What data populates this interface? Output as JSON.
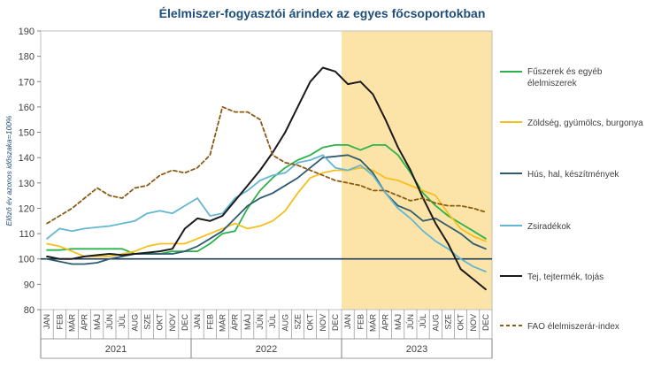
{
  "chart_data": {
    "type": "line",
    "title": "Élelmiszer-fogyasztói árindex az egyes főcsoportokban",
    "ylabel": "Előző év azonos időszaka=100%",
    "xlabel": "",
    "ylim": [
      80,
      190
    ],
    "yticks": [
      80,
      90,
      100,
      110,
      120,
      130,
      140,
      150,
      160,
      170,
      180,
      190
    ],
    "reference_line": 100,
    "highlight_start_index": 24,
    "highlight_color": "#FCE4A8",
    "grid": false,
    "legend_position": "right",
    "categories": [
      "JAN",
      "FEB",
      "MÁR",
      "ÁPR",
      "MÁJ",
      "JÚN",
      "JÚL",
      "AUG",
      "SZE",
      "OKT",
      "NOV",
      "DEC",
      "JAN",
      "FEB",
      "MÁR",
      "ÁPR",
      "MÁJ",
      "JÚN",
      "JÚL",
      "AUG",
      "SZE",
      "OKT",
      "NOV",
      "DEC",
      "JAN",
      "FEB",
      "MÁR",
      "ÁPR",
      "MÁJ",
      "JÚN",
      "JÚL",
      "AUG",
      "SZE",
      "OKT",
      "NOV",
      "DEC"
    ],
    "year_groups": [
      {
        "label": "2021",
        "start": 0,
        "end": 11
      },
      {
        "label": "2022",
        "start": 12,
        "end": 23
      },
      {
        "label": "2023",
        "start": 24,
        "end": 35
      }
    ],
    "series": [
      {
        "name": "Fűszerek és egyéb élelmiszerek",
        "color": "#2DB24A",
        "dashed": false,
        "values": [
          103.5,
          103.5,
          104,
          104,
          104,
          104,
          104,
          102,
          102,
          102,
          103,
          103,
          103,
          106,
          110,
          111,
          120,
          127,
          132,
          136,
          139,
          141,
          144,
          145,
          145,
          143,
          145,
          145,
          141,
          134,
          126,
          121,
          117,
          114,
          111,
          108
        ]
      },
      {
        "name": "Zöldség, gyümölcs, burgonya",
        "color": "#F6BF1E",
        "dashed": false,
        "values": [
          106,
          105,
          103,
          101,
          101,
          101,
          102,
          103,
          105,
          106,
          106,
          106,
          108,
          110,
          112,
          114,
          112,
          113,
          115,
          119,
          126,
          132,
          134,
          135,
          135,
          136,
          135,
          132,
          131,
          129,
          127,
          125,
          118,
          112,
          109,
          107
        ]
      },
      {
        "name": "Hús, hal, készítmények",
        "color": "#2E5B6F",
        "dashed": false,
        "values": [
          100,
          99,
          98,
          98,
          98.5,
          100,
          101,
          102,
          102,
          102,
          102,
          103,
          105,
          108,
          111,
          116,
          121,
          124,
          126,
          129,
          132,
          136,
          140,
          140.5,
          141,
          139,
          134,
          126,
          121,
          119,
          115,
          116,
          113,
          110,
          106,
          104
        ]
      },
      {
        "name": "Zsiradékok",
        "color": "#64B6D3",
        "dashed": false,
        "values": [
          108,
          112,
          111,
          112,
          112.5,
          113,
          114,
          115,
          118,
          119,
          118,
          121,
          124,
          117,
          118,
          124,
          127,
          131,
          133,
          134,
          138,
          139,
          141,
          136,
          135,
          137,
          133,
          126,
          120,
          116,
          111,
          107,
          104,
          100,
          97,
          95
        ]
      },
      {
        "name": "Tej, tejtermék, tojás",
        "color": "#1A1A1A",
        "dashed": false,
        "values": [
          101,
          100,
          100,
          101,
          101.5,
          102,
          101.5,
          102,
          102.5,
          103,
          104,
          112,
          116,
          115,
          117,
          123,
          129,
          135,
          142,
          150,
          160,
          170,
          175.5,
          174,
          169,
          170,
          165,
          155,
          144,
          135,
          124,
          114,
          106,
          96,
          92,
          88
        ]
      },
      {
        "name": "FAO élelmiszerár-index",
        "color": "#8B5A14",
        "dashed": true,
        "values": [
          114,
          117,
          120,
          124,
          128,
          125,
          124,
          128,
          129,
          133,
          135,
          134,
          136,
          141,
          160,
          158,
          158,
          155,
          141,
          138,
          137,
          135,
          133,
          131,
          130,
          129,
          127,
          127,
          125,
          123,
          124,
          122,
          121,
          121,
          120,
          118.5
        ]
      }
    ]
  }
}
